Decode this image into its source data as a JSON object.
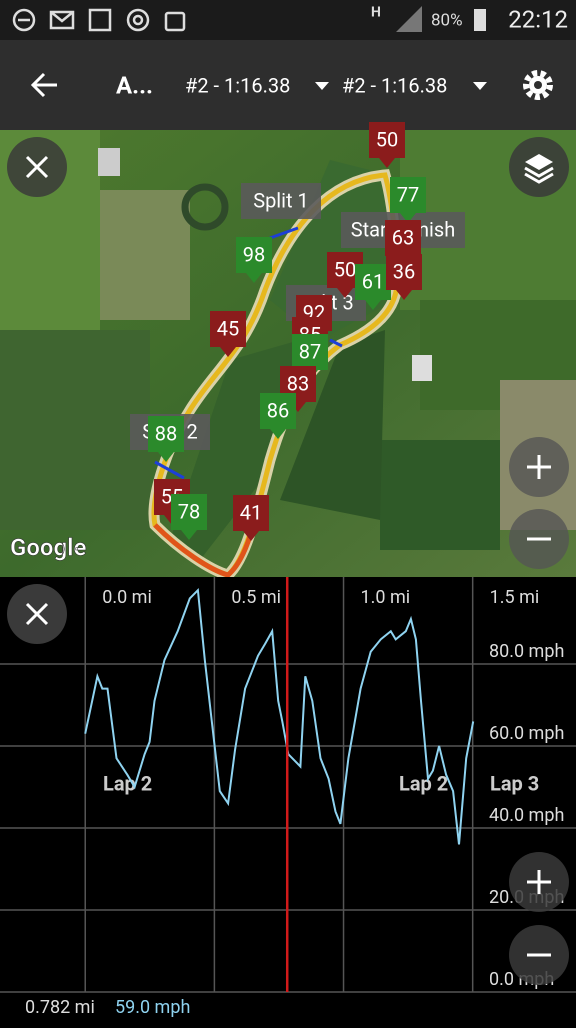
{
  "status_bar": {
    "network": "H",
    "battery": "80%",
    "time": "22:12"
  },
  "toolbar": {
    "title": "A...",
    "lap_a": "#2 - 1:16.38",
    "lap_b": "#2 - 1:16.38"
  },
  "map": {
    "attribution": "Google",
    "splits": [
      "Split 1",
      "Start/Finish",
      "Split 3",
      "Split 2"
    ],
    "markers": [
      {
        "label": "50",
        "color": "#8b1c1c"
      },
      {
        "label": "77",
        "color": "#2b8a2b"
      },
      {
        "label": "98",
        "color": "#2b8a2b"
      },
      {
        "label": "63",
        "color": "#8b1c1c"
      },
      {
        "label": "50",
        "color": "#8b1c1c"
      },
      {
        "label": "61",
        "color": "#2b8a2b"
      },
      {
        "label": "36",
        "color": "#8b1c1c"
      },
      {
        "label": "92",
        "color": "#8b1c1c"
      },
      {
        "label": "85",
        "color": "#8b1c1c"
      },
      {
        "label": "87",
        "color": "#2b8a2b"
      },
      {
        "label": "45",
        "color": "#8b1c1c"
      },
      {
        "label": "83",
        "color": "#8b1c1c"
      },
      {
        "label": "86",
        "color": "#2b8a2b"
      },
      {
        "label": "88",
        "color": "#2b8a2b"
      },
      {
        "label": "55",
        "color": "#8b1c1c"
      },
      {
        "label": "78",
        "color": "#2b8a2b"
      },
      {
        "label": "41",
        "color": "#8b1c1c"
      }
    ]
  },
  "chart_data": {
    "type": "line",
    "x": [
      0.0,
      0.047,
      0.066,
      0.086,
      0.121,
      0.163,
      0.191,
      0.23,
      0.249,
      0.268,
      0.307,
      0.358,
      0.405,
      0.436,
      0.463,
      0.49,
      0.521,
      0.553,
      0.58,
      0.619,
      0.669,
      0.697,
      0.724,
      0.747,
      0.763,
      0.786,
      0.833,
      0.852,
      0.879,
      0.911,
      0.942,
      0.969,
      0.988,
      1.019,
      1.066,
      1.105,
      1.144,
      1.183,
      1.202,
      1.241,
      1.261,
      1.28,
      1.3,
      1.327,
      1.346,
      1.37,
      1.397,
      1.424,
      1.447,
      1.475,
      1.502
    ],
    "series": [
      {
        "name": "Speed",
        "color": "#8fd3f0",
        "values": [
          63,
          77,
          74,
          74,
          57,
          53,
          50,
          58,
          61,
          71,
          81,
          88,
          96,
          98,
          81,
          66,
          49,
          46,
          59,
          74,
          82,
          85,
          88,
          71,
          66,
          58,
          55,
          77,
          71,
          57,
          52,
          44,
          41,
          57,
          74,
          83,
          86,
          88,
          86,
          88,
          91,
          86,
          71,
          52,
          54,
          60,
          53,
          49,
          36,
          57,
          66
        ]
      }
    ],
    "xlim": [
      -0.33,
      1.9
    ],
    "ylim": [
      0,
      100
    ],
    "xticks": [
      {
        "value": 0,
        "label": "0.0 mi"
      },
      {
        "value": 0.5,
        "label": "0.5 mi"
      },
      {
        "value": 1.0,
        "label": "1.0 mi"
      },
      {
        "value": 1.5,
        "label": "1.5 mi"
      }
    ],
    "yticks": [
      {
        "value": 0,
        "label": "0.0 mph"
      },
      {
        "value": 20,
        "label": "20.0 mph"
      },
      {
        "value": 40,
        "label": "40.0 mph"
      },
      {
        "value": 60,
        "label": "60.0 mph"
      },
      {
        "value": 80,
        "label": "80.0 mph"
      }
    ],
    "annotations": [
      "Lap 2",
      "Lap 2",
      "Lap 3"
    ],
    "cursor": {
      "x": {
        "value": 0.782,
        "label": "0.782 mi"
      },
      "y": {
        "value": 59.0,
        "label": "59.0 mph"
      },
      "color": "#d11a1a"
    },
    "grid": true
  }
}
